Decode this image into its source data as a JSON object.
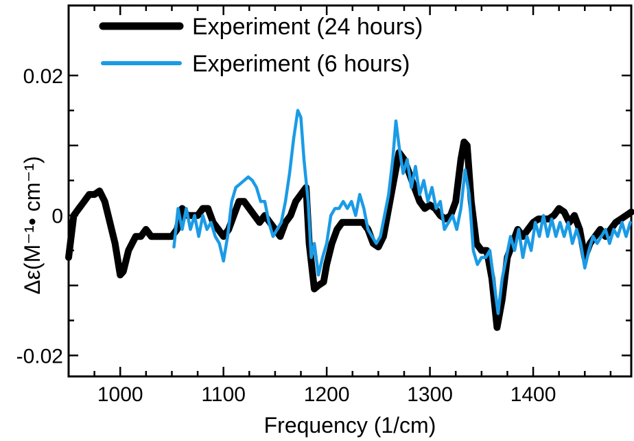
{
  "chart_data": {
    "type": "line",
    "title": "",
    "xlabel": "Frequency (1/cm)",
    "ylabel": "Δε(M⁻¹• cm⁻¹)",
    "xlim": [
      950,
      1495
    ],
    "ylim": [
      -0.023,
      0.03
    ],
    "x_ticks": [
      1000,
      1100,
      1200,
      1300,
      1400
    ],
    "x_tick_labels": [
      "1000",
      "1100",
      "1200",
      "1300",
      "1400"
    ],
    "y_ticks": [
      -0.02,
      0,
      0.02
    ],
    "y_tick_labels": [
      "-0.02",
      "0",
      "0.02"
    ],
    "grid": false,
    "legend_position": "top-left",
    "series": [
      {
        "name": "Experiment (24 hours)",
        "color": "#000000",
        "x": [
          950,
          955,
          960,
          965,
          970,
          975,
          980,
          985,
          990,
          995,
          1000,
          1003,
          1008,
          1015,
          1020,
          1025,
          1030,
          1035,
          1040,
          1045,
          1050,
          1055,
          1060,
          1065,
          1070,
          1075,
          1080,
          1085,
          1090,
          1095,
          1100,
          1105,
          1110,
          1115,
          1120,
          1125,
          1130,
          1135,
          1140,
          1145,
          1150,
          1155,
          1160,
          1165,
          1170,
          1175,
          1180,
          1183,
          1188,
          1192,
          1197,
          1200,
          1205,
          1210,
          1215,
          1220,
          1225,
          1230,
          1235,
          1240,
          1245,
          1250,
          1255,
          1260,
          1265,
          1270,
          1275,
          1280,
          1285,
          1290,
          1295,
          1300,
          1305,
          1310,
          1315,
          1320,
          1325,
          1330,
          1333,
          1336,
          1340,
          1345,
          1350,
          1355,
          1360,
          1365,
          1370,
          1375,
          1380,
          1385,
          1390,
          1395,
          1400,
          1405,
          1410,
          1415,
          1420,
          1425,
          1430,
          1435,
          1440,
          1445,
          1450,
          1455,
          1460,
          1465,
          1470,
          1475,
          1480,
          1485,
          1490,
          1495
        ],
        "y": [
          -0.006,
          0.0,
          0.001,
          0.002,
          0.003,
          0.003,
          0.0035,
          0.002,
          -0.001,
          -0.004,
          -0.0085,
          -0.008,
          -0.005,
          -0.003,
          -0.003,
          -0.002,
          -0.003,
          -0.003,
          -0.003,
          -0.003,
          -0.003,
          -0.002,
          0.001,
          0.0,
          0.0,
          0.0,
          0.001,
          0.001,
          -0.001,
          -0.002,
          -0.003,
          -0.002,
          0.0,
          0.002,
          0.002,
          0.001,
          0.0,
          -0.001,
          0.0,
          -0.001,
          -0.002,
          -0.003,
          -0.001,
          0.0,
          0.002,
          0.003,
          0.004,
          -0.004,
          -0.0105,
          -0.01,
          -0.0095,
          -0.007,
          -0.004,
          -0.002,
          -0.001,
          -0.001,
          -0.001,
          -0.001,
          -0.001,
          -0.002,
          -0.004,
          -0.0045,
          -0.003,
          0.001,
          0.005,
          0.009,
          0.008,
          0.006,
          0.004,
          0.002,
          0.001,
          0.0015,
          0.001,
          0.0,
          -0.0005,
          0.0,
          0.002,
          0.008,
          0.0105,
          0.01,
          0.002,
          -0.004,
          -0.005,
          -0.005,
          -0.009,
          -0.016,
          -0.012,
          -0.006,
          -0.004,
          -0.002,
          -0.003,
          -0.002,
          -0.001,
          -0.0005,
          -0.0005,
          -0.0005,
          0.0,
          0.001,
          0.0005,
          -0.001,
          0.0,
          -0.002,
          -0.006,
          -0.004,
          -0.003,
          -0.002,
          -0.003,
          -0.002,
          -0.001,
          -0.0005,
          0.0,
          0.0005
        ]
      },
      {
        "name": "Experiment (6 hours)",
        "color": "#1b9be6",
        "x": [
          1052,
          1056,
          1060,
          1064,
          1068,
          1072,
          1076,
          1080,
          1084,
          1088,
          1092,
          1096,
          1100,
          1104,
          1108,
          1112,
          1116,
          1120,
          1124,
          1128,
          1132,
          1136,
          1140,
          1144,
          1148,
          1152,
          1156,
          1160,
          1164,
          1168,
          1172,
          1175,
          1178,
          1182,
          1185,
          1188,
          1192,
          1196,
          1200,
          1204,
          1208,
          1212,
          1216,
          1220,
          1224,
          1228,
          1232,
          1236,
          1240,
          1244,
          1248,
          1252,
          1256,
          1260,
          1264,
          1267,
          1270,
          1274,
          1278,
          1282,
          1286,
          1290,
          1294,
          1298,
          1302,
          1306,
          1310,
          1314,
          1318,
          1322,
          1326,
          1330,
          1334,
          1338,
          1342,
          1346,
          1350,
          1354,
          1358,
          1362,
          1366,
          1370,
          1374,
          1378,
          1382,
          1386,
          1390,
          1394,
          1398,
          1402,
          1406,
          1410,
          1414,
          1418,
          1422,
          1426,
          1430,
          1434,
          1438,
          1442,
          1446,
          1450,
          1454,
          1458,
          1462,
          1466,
          1470,
          1474,
          1478,
          1482,
          1486,
          1490,
          1494
        ],
        "y": [
          -0.0045,
          0.001,
          -0.002,
          0.001,
          -0.002,
          0.0,
          -0.003,
          0.0,
          -0.002,
          -0.001,
          -0.003,
          -0.004,
          -0.0065,
          -0.003,
          0.002,
          0.004,
          0.0045,
          0.005,
          0.0055,
          0.005,
          0.004,
          0.002,
          0.002,
          -0.001,
          -0.003,
          -0.002,
          -0.001,
          0.002,
          0.006,
          0.011,
          0.015,
          0.014,
          0.008,
          0.002,
          -0.006,
          -0.004,
          -0.0085,
          -0.006,
          -0.004,
          0.0,
          0.001,
          0.001,
          0.002,
          0.001,
          0.002,
          0.0,
          0.003,
          0.001,
          -0.002,
          -0.003,
          -0.004,
          -0.003,
          0.0,
          0.003,
          0.008,
          0.0135,
          0.01,
          0.006,
          0.008,
          0.004,
          0.007,
          0.003,
          0.005,
          0.002,
          0.004,
          0.001,
          0.002,
          -0.002,
          -0.001,
          0.0,
          -0.002,
          0.001,
          0.0065,
          0.003,
          -0.005,
          -0.007,
          -0.006,
          -0.006,
          -0.005,
          -0.0095,
          -0.014,
          -0.009,
          -0.006,
          -0.003,
          -0.005,
          -0.002,
          -0.006,
          -0.003,
          -0.005,
          -0.001,
          -0.003,
          0.0,
          -0.003,
          -0.0005,
          -0.003,
          -0.001,
          -0.003,
          -0.001,
          -0.004,
          -0.002,
          -0.004,
          -0.0075,
          -0.005,
          -0.003,
          -0.004,
          -0.003,
          -0.002,
          -0.004,
          -0.002,
          -0.003,
          -0.001,
          -0.003,
          -0.001
        ]
      }
    ]
  }
}
